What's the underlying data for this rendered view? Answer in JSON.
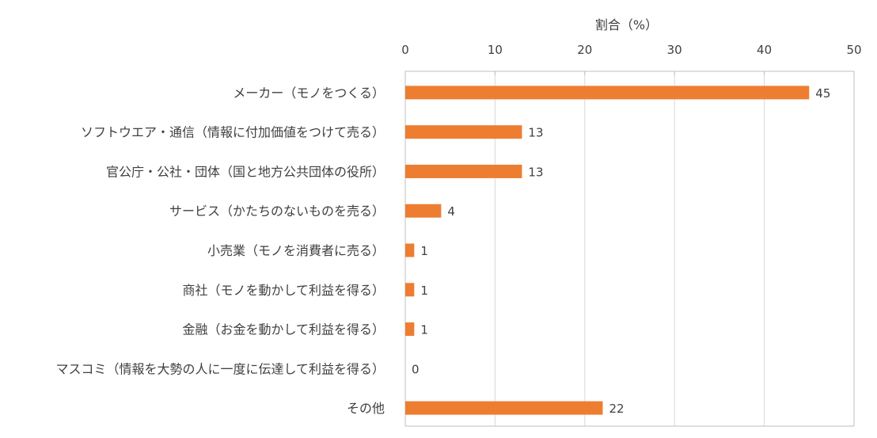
{
  "chart_data": {
    "type": "bar",
    "orientation": "horizontal",
    "xlabel": "割合（%）",
    "xlim": [
      0,
      50
    ],
    "xticks": [
      0,
      10,
      20,
      30,
      40,
      50
    ],
    "x_axis_position": "top",
    "grid": true,
    "categories": [
      "メーカー（モノをつくる）",
      "ソフトウエア・通信（情報に付加価値をつけて売る）",
      "官公庁・公社・団体（国と地方公共団体の役所）",
      "サービス（かたちのないものを売る）",
      "小売業（モノを消費者に売る）",
      "商社（モノを動かして利益を得る）",
      "金融（お金を動かして利益を得る）",
      "マスコミ（情報を大勢の人に一度に伝達して利益を得る）",
      "その他"
    ],
    "values": [
      45,
      13,
      13,
      4,
      1,
      1,
      1,
      0,
      22
    ],
    "bar_color": "#ED7D31",
    "grid_color": "#D9D9D9"
  }
}
